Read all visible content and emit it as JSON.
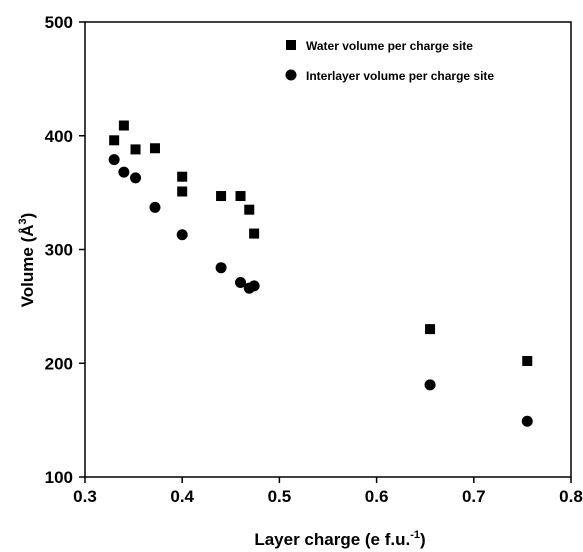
{
  "chart_data": {
    "type": "scatter",
    "title": "",
    "xlabel": "Layer charge  (e  f.u.",
    "xlabel_sup": "-1",
    "xlabel_close": ")",
    "ylabel": "Volume (Å",
    "ylabel_sup": "3",
    "ylabel_close": ")",
    "xlim": [
      0.3,
      0.8
    ],
    "ylim": [
      100,
      500
    ],
    "xticks": [
      0.3,
      0.4,
      0.5,
      0.6,
      0.7,
      0.8
    ],
    "xtick_labels": [
      "0.3",
      "0.4",
      "0.5",
      "0.6",
      "0.7",
      "0.8"
    ],
    "yticks": [
      100,
      200,
      300,
      400,
      500
    ],
    "ytick_labels": [
      "100",
      "200",
      "300",
      "400",
      "500"
    ],
    "grid": false,
    "legend_position": "top-right",
    "series": [
      {
        "name": "Water volume per charge site",
        "marker": "square",
        "color": "#000000",
        "points": [
          [
            0.33,
            396
          ],
          [
            0.34,
            409
          ],
          [
            0.352,
            388
          ],
          [
            0.372,
            389
          ],
          [
            0.4,
            364
          ],
          [
            0.4,
            351
          ],
          [
            0.44,
            347
          ],
          [
            0.46,
            347
          ],
          [
            0.469,
            335
          ],
          [
            0.474,
            314
          ],
          [
            0.655,
            230
          ],
          [
            0.755,
            202
          ]
        ]
      },
      {
        "name": "Interlayer volume per charge site",
        "marker": "circle",
        "color": "#000000",
        "points": [
          [
            0.33,
            379
          ],
          [
            0.34,
            368
          ],
          [
            0.352,
            363
          ],
          [
            0.372,
            337
          ],
          [
            0.4,
            313
          ],
          [
            0.44,
            284
          ],
          [
            0.46,
            271
          ],
          [
            0.469,
            266
          ],
          [
            0.474,
            268
          ],
          [
            0.655,
            181
          ],
          [
            0.755,
            149
          ]
        ]
      }
    ]
  }
}
